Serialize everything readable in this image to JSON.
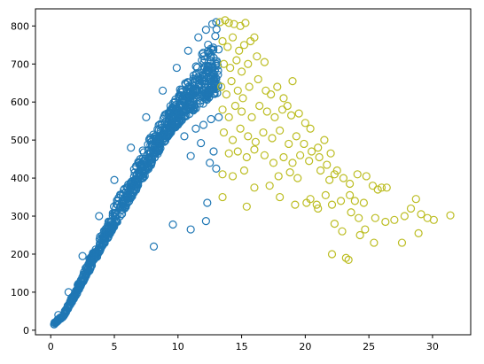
{
  "chart_data": {
    "type": "scatter",
    "title": "",
    "xlabel": "",
    "ylabel": "",
    "xlim": [
      -1.2,
      33
    ],
    "ylim": [
      -12,
      845
    ],
    "xticks": [
      0,
      5,
      10,
      15,
      20,
      25,
      30
    ],
    "yticks": [
      0,
      100,
      200,
      300,
      400,
      500,
      600,
      700,
      800
    ],
    "grid": false,
    "legend": "none",
    "marker": "hollow-circle",
    "series": [
      {
        "color": "#1f77b4",
        "description_band": {
          "note": "dense band of points following the upper edge y ≈ 60x for x from 0.2 to 13.2, spreading below toward y ≈ 48x",
          "upper_edge": [
            [
              0.2,
              15
            ],
            [
              1,
              45
            ],
            [
              2,
              110
            ],
            [
              3,
              185
            ],
            [
              4,
              255
            ],
            [
              5,
              330
            ],
            [
              6,
              395
            ],
            [
              7,
              460
            ],
            [
              8,
              520
            ],
            [
              9,
              570
            ],
            [
              10,
              625
            ],
            [
              11,
              680
            ],
            [
              12,
              740
            ],
            [
              13,
              800
            ]
          ],
          "lower_edge": [
            [
              0.2,
              12
            ],
            [
              1,
              35
            ],
            [
              2,
              90
            ],
            [
              3,
              150
            ],
            [
              4,
              210
            ],
            [
              5,
              265
            ],
            [
              6,
              320
            ],
            [
              7,
              375
            ],
            [
              8,
              430
            ],
            [
              9,
              490
            ],
            [
              10,
              530
            ],
            [
              11,
              560
            ],
            [
              12,
              580
            ],
            [
              13,
              600
            ]
          ]
        },
        "points": [
          [
            8.1,
            220
          ],
          [
            9.6,
            278
          ],
          [
            11.0,
            265
          ],
          [
            12.2,
            287
          ],
          [
            12.3,
            335
          ],
          [
            11.0,
            458
          ],
          [
            11.8,
            492
          ],
          [
            12.5,
            440
          ],
          [
            13.0,
            425
          ],
          [
            12.8,
            470
          ],
          [
            10.5,
            510
          ],
          [
            11.4,
            530
          ],
          [
            12.0,
            540
          ],
          [
            12.6,
            555
          ],
          [
            13.2,
            560
          ],
          [
            13.0,
            810
          ],
          [
            12.7,
            805
          ],
          [
            12.2,
            790
          ],
          [
            11.6,
            770
          ],
          [
            10.8,
            735
          ],
          [
            9.9,
            690
          ],
          [
            8.8,
            630
          ],
          [
            7.5,
            560
          ],
          [
            6.3,
            480
          ],
          [
            5.0,
            395
          ],
          [
            3.8,
            300
          ],
          [
            2.5,
            195
          ],
          [
            1.4,
            100
          ],
          [
            0.6,
            40
          ],
          [
            0.3,
            20
          ]
        ]
      },
      {
        "color": "#bcbd22",
        "points": [
          [
            13.3,
            810
          ],
          [
            13.7,
            815
          ],
          [
            14.0,
            808
          ],
          [
            14.4,
            805
          ],
          [
            14.9,
            800
          ],
          [
            15.3,
            808
          ],
          [
            13.5,
            760
          ],
          [
            13.9,
            745
          ],
          [
            14.3,
            770
          ],
          [
            14.8,
            735
          ],
          [
            15.2,
            750
          ],
          [
            15.7,
            760
          ],
          [
            16.0,
            770
          ],
          [
            13.6,
            700
          ],
          [
            14.1,
            690
          ],
          [
            14.6,
            710
          ],
          [
            15.0,
            680
          ],
          [
            15.5,
            700
          ],
          [
            16.2,
            720
          ],
          [
            16.8,
            705
          ],
          [
            13.4,
            640
          ],
          [
            13.8,
            620
          ],
          [
            14.2,
            655
          ],
          [
            14.7,
            630
          ],
          [
            15.1,
            610
          ],
          [
            15.6,
            640
          ],
          [
            16.3,
            660
          ],
          [
            16.9,
            630
          ],
          [
            17.3,
            620
          ],
          [
            17.8,
            640
          ],
          [
            18.3,
            610
          ],
          [
            19.0,
            655
          ],
          [
            18.6,
            590
          ],
          [
            13.5,
            580
          ],
          [
            14.0,
            560
          ],
          [
            14.5,
            590
          ],
          [
            15.0,
            575
          ],
          [
            15.8,
            560
          ],
          [
            16.4,
            590
          ],
          [
            17.0,
            575
          ],
          [
            17.6,
            560
          ],
          [
            18.2,
            580
          ],
          [
            18.9,
            565
          ],
          [
            19.5,
            570
          ],
          [
            20.0,
            545
          ],
          [
            20.4,
            530
          ],
          [
            13.6,
            520
          ],
          [
            14.3,
            500
          ],
          [
            14.9,
            530
          ],
          [
            15.5,
            510
          ],
          [
            16.1,
            495
          ],
          [
            16.7,
            520
          ],
          [
            17.4,
            505
          ],
          [
            18.0,
            525
          ],
          [
            18.7,
            490
          ],
          [
            19.3,
            510
          ],
          [
            19.9,
            490
          ],
          [
            20.5,
            470
          ],
          [
            21.0,
            480
          ],
          [
            21.5,
            500
          ],
          [
            14.0,
            465
          ],
          [
            14.7,
            470
          ],
          [
            15.4,
            455
          ],
          [
            16.0,
            475
          ],
          [
            16.8,
            460
          ],
          [
            17.5,
            440
          ],
          [
            18.3,
            455
          ],
          [
            19.0,
            440
          ],
          [
            19.6,
            460
          ],
          [
            20.3,
            445
          ],
          [
            21.1,
            455
          ],
          [
            21.7,
            435
          ],
          [
            22.0,
            465
          ],
          [
            22.3,
            410
          ],
          [
            13.5,
            410
          ],
          [
            14.3,
            405
          ],
          [
            15.2,
            420
          ],
          [
            17.9,
            405
          ],
          [
            18.8,
            415
          ],
          [
            21.2,
            420
          ],
          [
            21.9,
            395
          ],
          [
            22.5,
            420
          ],
          [
            23.0,
            400
          ],
          [
            23.5,
            385
          ],
          [
            24.1,
            410
          ],
          [
            24.8,
            405
          ],
          [
            25.3,
            380
          ],
          [
            26.0,
            375
          ],
          [
            13.5,
            350
          ],
          [
            16.0,
            375
          ],
          [
            18.0,
            350
          ],
          [
            19.2,
            330
          ],
          [
            20.4,
            345
          ],
          [
            21.0,
            320
          ],
          [
            21.6,
            355
          ],
          [
            22.1,
            330
          ],
          [
            22.8,
            340
          ],
          [
            23.5,
            355
          ],
          [
            23.9,
            340
          ],
          [
            24.6,
            335
          ],
          [
            25.7,
            370
          ],
          [
            26.4,
            375
          ],
          [
            15.4,
            325
          ],
          [
            20.1,
            335
          ],
          [
            22.3,
            280
          ],
          [
            22.9,
            260
          ],
          [
            23.6,
            310
          ],
          [
            24.2,
            295
          ],
          [
            24.7,
            265
          ],
          [
            25.5,
            295
          ],
          [
            26.3,
            285
          ],
          [
            27.0,
            290
          ],
          [
            27.8,
            300
          ],
          [
            28.3,
            320
          ],
          [
            28.7,
            345
          ],
          [
            29.1,
            305
          ],
          [
            29.6,
            295
          ],
          [
            30.1,
            290
          ],
          [
            31.4,
            302
          ],
          [
            28.9,
            255
          ],
          [
            27.6,
            230
          ],
          [
            25.4,
            230
          ],
          [
            24.3,
            250
          ],
          [
            22.1,
            200
          ],
          [
            23.2,
            190
          ],
          [
            23.4,
            185
          ],
          [
            20.9,
            330
          ],
          [
            19.4,
            400
          ],
          [
            17.2,
            380
          ]
        ]
      }
    ]
  }
}
